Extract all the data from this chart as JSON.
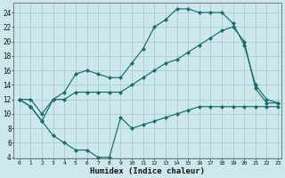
{
  "xlabel": "Humidex (Indice chaleur)",
  "bg_color": "#cce8ec",
  "grid_color": "#a8cdd2",
  "line_color": "#1a6b6b",
  "xlim": [
    0,
    23
  ],
  "ylim": [
    4,
    25
  ],
  "xticks": [
    0,
    1,
    2,
    3,
    4,
    5,
    6,
    7,
    8,
    9,
    10,
    11,
    12,
    13,
    14,
    15,
    16,
    17,
    18,
    19,
    20,
    21,
    22,
    23
  ],
  "yticks": [
    4,
    6,
    8,
    10,
    12,
    14,
    16,
    18,
    20,
    22,
    24
  ],
  "line1_x": [
    0,
    1,
    2,
    3,
    4,
    5,
    6,
    7,
    8,
    9,
    10,
    11,
    12,
    13,
    14,
    15,
    16,
    17,
    18,
    19,
    20,
    21,
    22,
    23
  ],
  "line1_y": [
    12,
    11,
    9,
    7,
    6,
    5,
    5,
    4,
    4,
    9.5,
    8,
    8.5,
    9,
    9.5,
    10,
    10.5,
    11,
    11,
    11,
    11,
    11,
    11,
    11,
    11
  ],
  "line2_x": [
    0,
    1,
    2,
    3,
    4,
    5,
    6,
    7,
    8,
    9,
    10,
    11,
    12,
    13,
    14,
    15,
    16,
    17,
    18,
    19,
    20,
    21,
    22,
    23
  ],
  "line2_y": [
    12,
    12,
    10,
    12,
    12,
    13,
    13,
    13,
    13,
    13,
    14,
    15,
    16,
    17,
    17.5,
    18.5,
    19.5,
    20.5,
    21.5,
    22,
    20,
    13.5,
    11.5,
    11.5
  ],
  "line3_x": [
    0,
    1,
    2,
    3,
    4,
    5,
    6,
    7,
    8,
    9,
    10,
    11,
    12,
    13,
    14,
    15,
    16,
    17,
    18,
    19,
    20,
    21,
    22,
    23
  ],
  "line3_y": [
    12,
    11,
    9,
    12,
    13,
    15.5,
    16,
    15.5,
    15,
    15,
    17,
    19,
    22,
    23,
    24.5,
    24.5,
    24,
    24,
    24,
    22.5,
    19.5,
    14,
    12,
    11.5
  ]
}
